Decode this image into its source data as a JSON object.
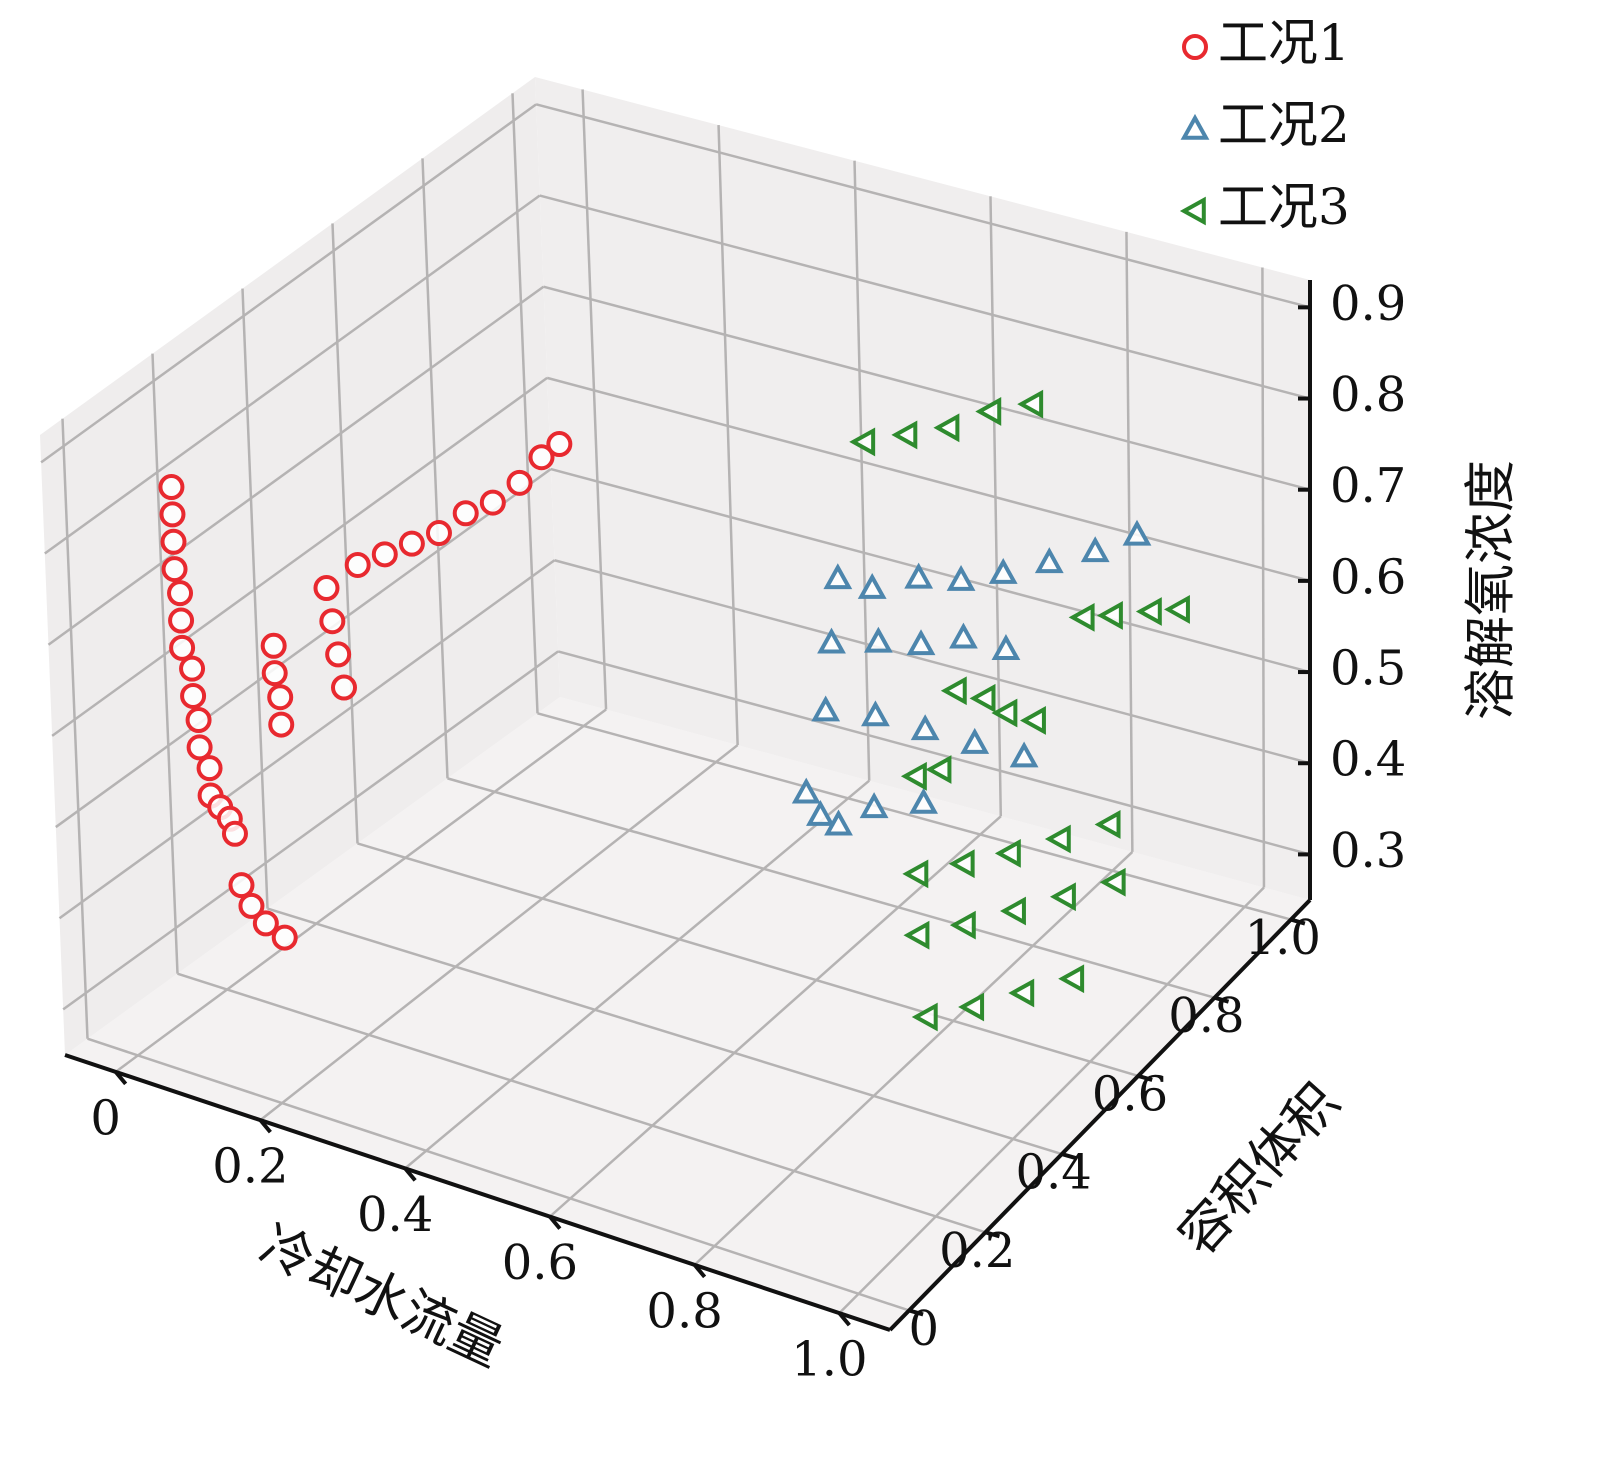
{
  "chart_data": {
    "type": "scatter3d",
    "xlabel": "冷却水流量",
    "ylabel": "容积体积",
    "zlabel": "溶解氧浓度",
    "xlim": [
      -0.07,
      1.07
    ],
    "ylim": [
      -0.05,
      1.05
    ],
    "zlim": [
      0.25,
      0.93
    ],
    "xticks": [
      0,
      0.2,
      0.4,
      0.6,
      0.8,
      {
        "value": 1,
        "label": "1.0"
      }
    ],
    "yticks": [
      0,
      0.2,
      0.4,
      0.6,
      0.8,
      {
        "value": 1,
        "label": "1.0"
      }
    ],
    "zticks": [
      0.3,
      0.4,
      0.5,
      0.6,
      0.7,
      0.8,
      0.9
    ],
    "grid": true,
    "legend": "upper right",
    "series": [
      {
        "name": "工况1",
        "color": "#e8292f",
        "marker": "circle",
        "x": [
          0,
          0,
          0,
          0,
          0,
          0,
          0,
          0,
          0,
          0,
          0,
          0,
          0,
          0,
          0,
          0,
          0,
          0,
          0,
          0,
          0,
          0,
          0,
          0,
          0,
          0,
          0,
          0,
          0,
          0,
          0,
          0,
          0,
          0,
          0,
          0,
          0
        ],
        "y": [
          0.12,
          0.12,
          0.12,
          0.12,
          0.13,
          0.13,
          0.13,
          0.15,
          0.15,
          0.16,
          0.16,
          0.18,
          0.18,
          0.2,
          0.22,
          0.23,
          0.24,
          0.26,
          0.29,
          0.33,
          0.33,
          0.33,
          0.34,
          0.34,
          0.45,
          0.46,
          0.47,
          0.48,
          0.52,
          0.58,
          0.64,
          0.7,
          0.76,
          0.82,
          0.88,
          0.93,
          0.97
        ],
        "z": [
          0.83,
          0.8,
          0.77,
          0.74,
          0.71,
          0.68,
          0.65,
          0.62,
          0.59,
          0.56,
          0.53,
          0.5,
          0.47,
          0.45,
          0.43,
          0.41,
          0.35,
          0.32,
          0.29,
          0.26,
          0.58,
          0.55,
          0.52,
          0.49,
          0.6,
          0.56,
          0.52,
          0.48,
          0.6,
          0.59,
          0.58,
          0.57,
          0.57,
          0.56,
          0.56,
          0.57,
          0.57
        ]
      },
      {
        "name": "工况2",
        "color": "#4d86ad",
        "marker": "triangle-up",
        "x": [
          0.55,
          0.6,
          0.65,
          0.7,
          0.75,
          0.8,
          0.85,
          0.9,
          0.6,
          0.65,
          0.7,
          0.75,
          0.8,
          0.62,
          0.68,
          0.74,
          0.8,
          0.86,
          0.62,
          0.64,
          0.66,
          0.7,
          0.76
        ],
        "y": [
          0.75,
          0.75,
          0.78,
          0.8,
          0.82,
          0.85,
          0.88,
          0.9,
          0.65,
          0.68,
          0.7,
          0.72,
          0.74,
          0.6,
          0.62,
          0.64,
          0.66,
          0.68,
          0.55,
          0.55,
          0.56,
          0.58,
          0.6
        ],
        "z": [
          0.62,
          0.62,
          0.63,
          0.63,
          0.64,
          0.65,
          0.66,
          0.68,
          0.6,
          0.6,
          0.6,
          0.61,
          0.6,
          0.55,
          0.55,
          0.54,
          0.53,
          0.52,
          0.48,
          0.46,
          0.45,
          0.47,
          0.48
        ]
      },
      {
        "name": "工况3",
        "color": "#2e8b2e",
        "marker": "triangle-left",
        "x": [
          0.5,
          0.55,
          0.6,
          0.65,
          0.7,
          0.75,
          0.78,
          0.8,
          0.83,
          0.85,
          0.88,
          0.92,
          0.95,
          0.72,
          0.75,
          0.75,
          0.8,
          0.85,
          0.9,
          0.95,
          0.78,
          0.83,
          0.88,
          0.93,
          0.98,
          0.82,
          0.87,
          0.92,
          0.97
        ],
        "y": [
          0.9,
          0.92,
          0.94,
          0.96,
          0.98,
          0.7,
          0.72,
          0.74,
          0.76,
          0.85,
          0.87,
          0.9,
          0.92,
          0.65,
          0.66,
          0.6,
          0.63,
          0.66,
          0.7,
          0.74,
          0.55,
          0.58,
          0.62,
          0.66,
          0.7,
          0.5,
          0.53,
          0.57,
          0.61
        ],
        "z": [
          0.7,
          0.71,
          0.72,
          0.74,
          0.75,
          0.56,
          0.55,
          0.53,
          0.52,
          0.6,
          0.6,
          0.6,
          0.6,
          0.48,
          0.49,
          0.4,
          0.41,
          0.42,
          0.43,
          0.44,
          0.36,
          0.37,
          0.38,
          0.39,
          0.4,
          0.3,
          0.31,
          0.32,
          0.33
        ]
      }
    ]
  }
}
